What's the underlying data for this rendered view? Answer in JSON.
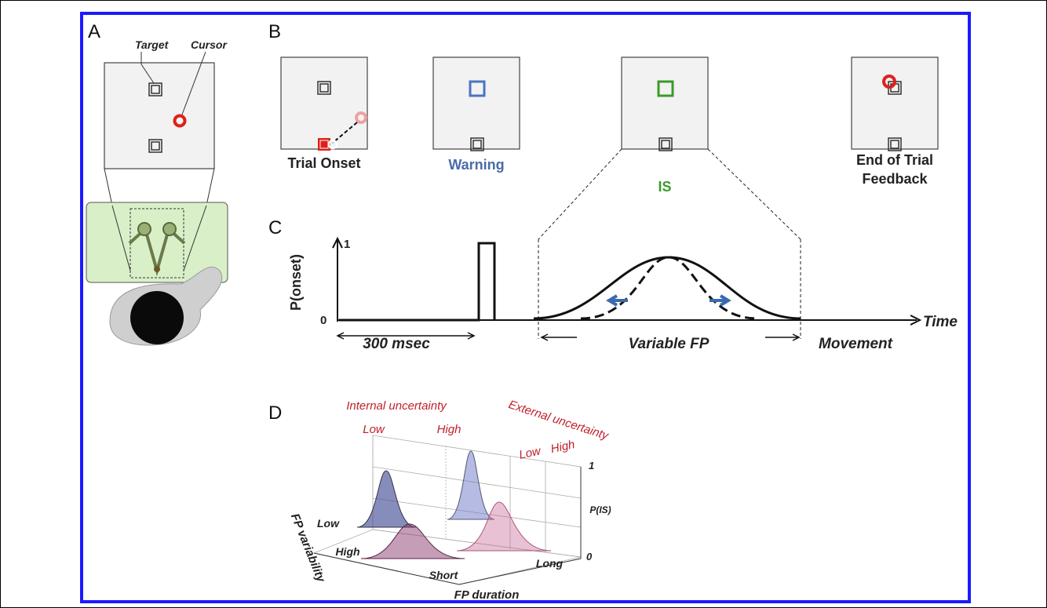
{
  "panels": {
    "a": {
      "label": "A",
      "target": "Target",
      "cursor": "Cursor"
    },
    "b": {
      "label": "B",
      "screens": [
        {
          "caption": "Trial Onset"
        },
        {
          "caption": "Warning"
        },
        {
          "caption": "IS"
        },
        {
          "caption": [
            "End of Trial",
            "Feedback"
          ]
        }
      ]
    },
    "c": {
      "label": "C",
      "y_label": "P(onset)",
      "y_top": "1",
      "y_bottom": "0",
      "x_label": "Time",
      "baseline_span": "300 msec",
      "fp_span": "Variable FP",
      "movement": "Movement"
    },
    "d": {
      "label": "D",
      "internal_uncertainty": {
        "title": "Internal uncertainty",
        "low": "Low",
        "high": "High"
      },
      "external_uncertainty": {
        "title": "External uncertainty",
        "low": "Low",
        "high": "High"
      },
      "fp_variability": {
        "title": "FP variability",
        "low": "Low",
        "high": "High"
      },
      "fp_duration": {
        "title": "FP duration",
        "short": "Short",
        "long": "Long"
      },
      "p_is": {
        "title": "P(IS)",
        "top": "1",
        "bottom": "0"
      }
    }
  }
}
